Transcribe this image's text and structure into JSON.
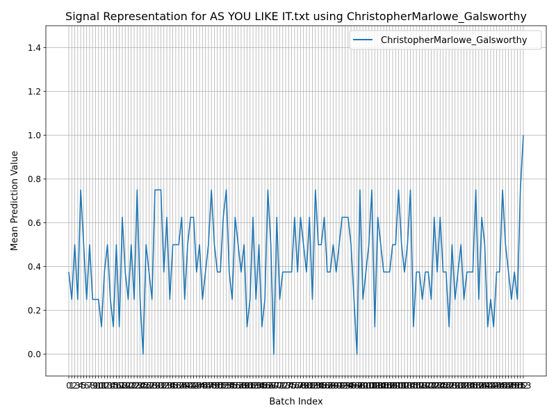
{
  "chart_data": {
    "type": "line",
    "title": "Signal Representation for AS YOU LIKE IT.txt using ChristopherMarlowe_Galsworthy",
    "xlabel": "Batch Index",
    "ylabel": "Mean Prediction Value",
    "ylim": [
      -0.1,
      1.5
    ],
    "yticks": [
      "0.0",
      "0.2",
      "0.4",
      "0.6",
      "0.8",
      "1.0",
      "1.2",
      "1.4"
    ],
    "grid": true,
    "legend_position": "upper right",
    "line_color": "#1f77b4",
    "x_tick_labels": [
      "0",
      "1",
      "2",
      "3",
      "4",
      "5",
      "6",
      "7",
      "8",
      "9",
      "10",
      "11",
      "12",
      "13",
      "14",
      "15",
      "16",
      "17",
      "18",
      "19",
      "20",
      "21",
      "22",
      "23",
      "24",
      "25",
      "26",
      "27",
      "28",
      "29",
      "30",
      "31",
      "32",
      "33",
      "34",
      "35",
      "36",
      "37",
      "38",
      "39",
      "40",
      "41",
      "42",
      "43",
      "44",
      "45",
      "46",
      "47",
      "48",
      "49",
      "50",
      "51",
      "52",
      "53",
      "54",
      "55",
      "56",
      "57",
      "58",
      "59",
      "60",
      "61",
      "62",
      "63",
      "64",
      "65",
      "66",
      "67",
      "68",
      "69",
      "70",
      "71",
      "72",
      "73",
      "74",
      "75",
      "76",
      "77",
      "78",
      "79",
      "80",
      "81",
      "82",
      "83",
      "84",
      "85",
      "86",
      "87",
      "88",
      "89",
      "90",
      "91",
      "92",
      "93",
      "94",
      "95",
      "96",
      "97",
      "98",
      "99",
      "100",
      "101",
      "102",
      "103",
      "104",
      "105",
      "106",
      "107",
      "108",
      "109",
      "110",
      "111",
      "112",
      "113",
      "114",
      "115",
      "116",
      "117",
      "118",
      "119",
      "120",
      "121",
      "122",
      "123",
      "124",
      "125",
      "126",
      "127",
      "128",
      "129",
      "130",
      "131",
      "132",
      "133",
      "134",
      "135",
      "136",
      "137",
      "138",
      "139",
      "140",
      "141",
      "142",
      "143",
      "144",
      "145",
      "146",
      "147",
      "148",
      "149",
      "150",
      "151",
      "152",
      "153"
    ],
    "series": [
      {
        "name": "ChristopherMarlowe_Galsworthy",
        "values": [
          0.375,
          0.25,
          0.5,
          0.25,
          0.75,
          0.5,
          0.25,
          0.5,
          0.25,
          0.25,
          0.25,
          0.125,
          0.375,
          0.5,
          0.25,
          0.125,
          0.5,
          0.125,
          0.625,
          0.375,
          0.25,
          0.5,
          0.25,
          0.75,
          0.25,
          0.0,
          0.5,
          0.375,
          0.25,
          0.75,
          0.75,
          0.75,
          0.375,
          0.625,
          0.25,
          0.5,
          0.5,
          0.5,
          0.625,
          0.25,
          0.5,
          0.625,
          0.625,
          0.375,
          0.5,
          0.25,
          0.375,
          0.5,
          0.75,
          0.5,
          0.375,
          0.375,
          0.625,
          0.75,
          0.375,
          0.25,
          0.625,
          0.5,
          0.375,
          0.5,
          0.125,
          0.25,
          0.625,
          0.25,
          0.5,
          0.125,
          0.25,
          0.75,
          0.5,
          0.0,
          0.625,
          0.25,
          0.375,
          0.375,
          0.375,
          0.375,
          0.625,
          0.375,
          0.625,
          0.5,
          0.375,
          0.625,
          0.25,
          0.75,
          0.5,
          0.5,
          0.625,
          0.375,
          0.375,
          0.5,
          0.375,
          0.5,
          0.625,
          0.625,
          0.625,
          0.5,
          0.25,
          0.0,
          0.75,
          0.25,
          0.375,
          0.5,
          0.75,
          0.125,
          0.625,
          0.5,
          0.375,
          0.375,
          0.375,
          0.5,
          0.5,
          0.75,
          0.5,
          0.375,
          0.5,
          0.75,
          0.125,
          0.375,
          0.375,
          0.25,
          0.375,
          0.375,
          0.25,
          0.625,
          0.375,
          0.625,
          0.375,
          0.375,
          0.125,
          0.5,
          0.25,
          0.375,
          0.5,
          0.25,
          0.375,
          0.375,
          0.375,
          0.75,
          0.25,
          0.625,
          0.5,
          0.125,
          0.25,
          0.125,
          0.375,
          0.375,
          0.75,
          0.5,
          0.375,
          0.25,
          0.375,
          0.25,
          0.75,
          1.0
        ]
      }
    ]
  }
}
